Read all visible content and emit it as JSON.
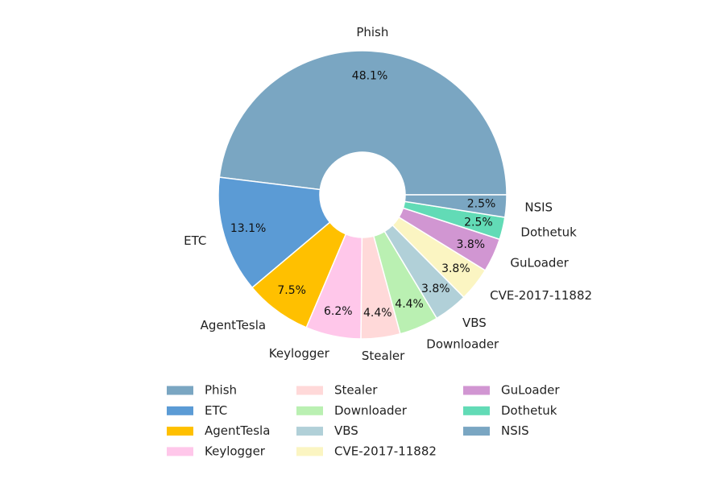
{
  "chart_data": {
    "type": "pie",
    "donut": true,
    "start_angle_deg": 0,
    "direction": "counterclockwise",
    "legend_position": "bottom",
    "legend_columns": 3,
    "slices": [
      {
        "label": "Phish",
        "value": 48.1,
        "pct_label": "48.1%",
        "color": "#7aa6c2"
      },
      {
        "label": "ETC",
        "value": 13.1,
        "pct_label": "13.1%",
        "color": "#5b9bd5"
      },
      {
        "label": "AgentTesla",
        "value": 7.5,
        "pct_label": "7.5%",
        "color": "#ffc000"
      },
      {
        "label": "Keylogger",
        "value": 6.2,
        "pct_label": "6.2%",
        "color": "#ffc7ea"
      },
      {
        "label": "Stealer",
        "value": 4.4,
        "pct_label": "4.4%",
        "color": "#ffd9d9"
      },
      {
        "label": "Downloader",
        "value": 4.4,
        "pct_label": "4.4%",
        "color": "#baf0b2"
      },
      {
        "label": "VBS",
        "value": 3.8,
        "pct_label": "3.8%",
        "color": "#b1d0d8"
      },
      {
        "label": "CVE-2017-11882",
        "value": 3.8,
        "pct_label": "3.8%",
        "color": "#fbf5c2"
      },
      {
        "label": "GuLoader",
        "value": 3.8,
        "pct_label": "3.8%",
        "color": "#d196d2"
      },
      {
        "label": "Dothetuk",
        "value": 2.5,
        "pct_label": "2.5%",
        "color": "#62dbb6"
      },
      {
        "label": "NSIS",
        "value": 2.5,
        "pct_label": "2.5%",
        "color": "#7aa6c2"
      }
    ]
  }
}
